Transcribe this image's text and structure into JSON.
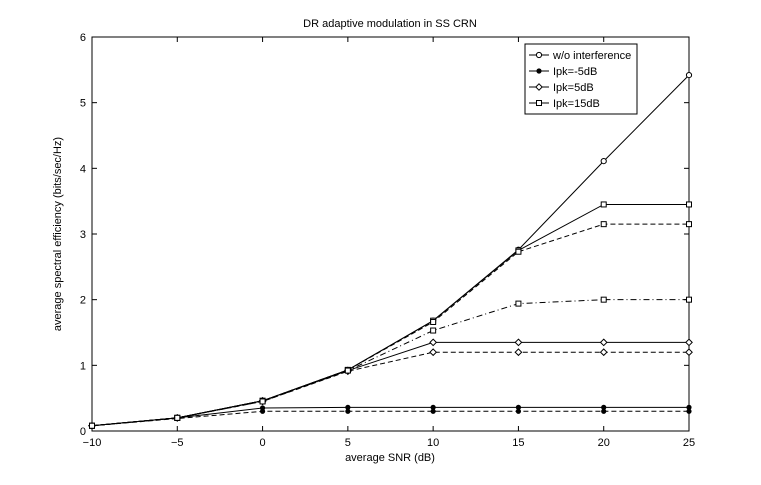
{
  "chart_data": {
    "type": "line",
    "title": "DR adaptive modulation in SS CRN",
    "xlabel": "average SNR (dB)",
    "ylabel": "average spectral efficiency (bits/sec/Hz)",
    "xlim": [
      -10,
      25
    ],
    "ylim": [
      0,
      6
    ],
    "xticks": [
      -10,
      -5,
      0,
      5,
      10,
      15,
      20,
      25
    ],
    "yticks": [
      0,
      1,
      2,
      3,
      4,
      5,
      6
    ],
    "x": [
      -10,
      -5,
      0,
      5,
      10,
      15,
      20,
      25
    ],
    "legend_position": "top-right",
    "series": [
      {
        "name": "w/o interference",
        "marker": "circle",
        "style": "solid",
        "values": [
          0.08,
          0.2,
          0.46,
          0.93,
          1.68,
          2.76,
          4.11,
          5.42
        ]
      },
      {
        "name": "Ipk=-5dB",
        "marker": "dot",
        "style": "solid",
        "values": [
          0.08,
          0.2,
          0.35,
          0.36,
          0.36,
          0.36,
          0.36,
          0.36
        ]
      },
      {
        "name": "Ipk=-5dB",
        "marker": "dot",
        "style": "dashed",
        "values": [
          0.08,
          0.19,
          0.3,
          0.3,
          0.3,
          0.3,
          0.3,
          0.3
        ]
      },
      {
        "name": "Ipk=5dB",
        "marker": "diamond",
        "style": "solid",
        "values": [
          0.08,
          0.2,
          0.46,
          0.92,
          1.35,
          1.35,
          1.35,
          1.35
        ]
      },
      {
        "name": "Ipk=5dB",
        "marker": "diamond",
        "style": "dashed",
        "values": [
          0.08,
          0.2,
          0.45,
          0.91,
          1.2,
          1.2,
          1.2,
          1.2
        ]
      },
      {
        "name": "Ipk=15dB",
        "marker": "square",
        "style": "solid",
        "values": [
          0.08,
          0.2,
          0.46,
          0.93,
          1.68,
          2.75,
          3.45,
          3.45
        ]
      },
      {
        "name": "Ipk=15dB",
        "marker": "square",
        "style": "dashed",
        "values": [
          0.08,
          0.2,
          0.46,
          0.93,
          1.66,
          2.73,
          3.15,
          3.15
        ]
      },
      {
        "name": "Ipk=15dB",
        "marker": "square",
        "style": "dashdot",
        "values": [
          0.08,
          0.2,
          0.45,
          0.92,
          1.53,
          1.94,
          2.0,
          2.0
        ]
      }
    ],
    "legend": [
      {
        "label": "w/o interference",
        "marker": "circle"
      },
      {
        "label": "Ipk=-5dB",
        "marker": "dot"
      },
      {
        "label": "Ipk=5dB",
        "marker": "diamond"
      },
      {
        "label": "Ipk=15dB",
        "marker": "square"
      }
    ]
  }
}
